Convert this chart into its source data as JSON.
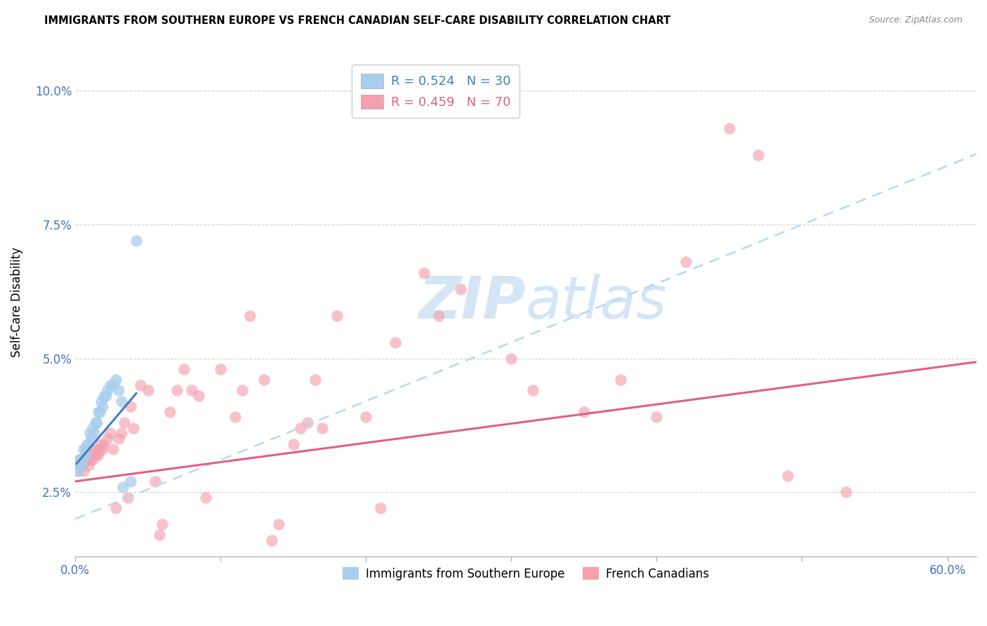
{
  "title": "IMMIGRANTS FROM SOUTHERN EUROPE VS FRENCH CANADIAN SELF-CARE DISABILITY CORRELATION CHART",
  "source": "Source: ZipAtlas.com",
  "ylabel": "Self-Care Disability",
  "xlim": [
    0.0,
    0.62
  ],
  "ylim": [
    0.013,
    0.108
  ],
  "yticks": [
    0.025,
    0.05,
    0.075,
    0.1
  ],
  "ytick_labels": [
    "2.5%",
    "5.0%",
    "7.5%",
    "10.0%"
  ],
  "xticks": [
    0.0,
    0.1,
    0.2,
    0.3,
    0.4,
    0.5,
    0.6
  ],
  "xtick_labels": [
    "0.0%",
    "",
    "",
    "",
    "",
    "",
    "60.0%"
  ],
  "blue_R": "R = 0.524",
  "blue_N": "N = 30",
  "pink_R": "R = 0.459",
  "pink_N": "N = 70",
  "blue_label": "Immigrants from Southern Europe",
  "pink_label": "French Canadians",
  "blue_color": "#A8CEEE",
  "pink_color": "#F4A0B0",
  "blue_line_color": "#4080C0",
  "pink_line_color": "#E06080",
  "dashed_line_color": "#B8D8F0",
  "watermark_color": "#D0E4F4",
  "tick_label_color": "#4472C4",
  "blue_scatter": [
    [
      0.001,
      0.03
    ],
    [
      0.002,
      0.029
    ],
    [
      0.003,
      0.031
    ],
    [
      0.004,
      0.03
    ],
    [
      0.005,
      0.031
    ],
    [
      0.006,
      0.033
    ],
    [
      0.007,
      0.032
    ],
    [
      0.008,
      0.034
    ],
    [
      0.009,
      0.034
    ],
    [
      0.01,
      0.036
    ],
    [
      0.011,
      0.035
    ],
    [
      0.012,
      0.037
    ],
    [
      0.013,
      0.036
    ],
    [
      0.014,
      0.038
    ],
    [
      0.015,
      0.038
    ],
    [
      0.016,
      0.04
    ],
    [
      0.017,
      0.04
    ],
    [
      0.018,
      0.042
    ],
    [
      0.019,
      0.041
    ],
    [
      0.02,
      0.043
    ],
    [
      0.021,
      0.043
    ],
    [
      0.022,
      0.044
    ],
    [
      0.024,
      0.045
    ],
    [
      0.026,
      0.045
    ],
    [
      0.028,
      0.046
    ],
    [
      0.03,
      0.044
    ],
    [
      0.032,
      0.042
    ],
    [
      0.033,
      0.026
    ],
    [
      0.038,
      0.027
    ],
    [
      0.042,
      0.072
    ]
  ],
  "pink_scatter": [
    [
      0.001,
      0.03
    ],
    [
      0.002,
      0.029
    ],
    [
      0.003,
      0.031
    ],
    [
      0.004,
      0.031
    ],
    [
      0.005,
      0.03
    ],
    [
      0.006,
      0.029
    ],
    [
      0.007,
      0.033
    ],
    [
      0.008,
      0.031
    ],
    [
      0.009,
      0.03
    ],
    [
      0.01,
      0.031
    ],
    [
      0.011,
      0.033
    ],
    [
      0.012,
      0.031
    ],
    [
      0.013,
      0.032
    ],
    [
      0.014,
      0.032
    ],
    [
      0.015,
      0.033
    ],
    [
      0.016,
      0.032
    ],
    [
      0.017,
      0.033
    ],
    [
      0.018,
      0.034
    ],
    [
      0.019,
      0.033
    ],
    [
      0.02,
      0.034
    ],
    [
      0.022,
      0.035
    ],
    [
      0.024,
      0.036
    ],
    [
      0.026,
      0.033
    ],
    [
      0.028,
      0.022
    ],
    [
      0.03,
      0.035
    ],
    [
      0.032,
      0.036
    ],
    [
      0.034,
      0.038
    ],
    [
      0.036,
      0.024
    ],
    [
      0.038,
      0.041
    ],
    [
      0.04,
      0.037
    ],
    [
      0.045,
      0.045
    ],
    [
      0.05,
      0.044
    ],
    [
      0.055,
      0.027
    ],
    [
      0.058,
      0.017
    ],
    [
      0.06,
      0.019
    ],
    [
      0.065,
      0.04
    ],
    [
      0.07,
      0.044
    ],
    [
      0.075,
      0.048
    ],
    [
      0.08,
      0.044
    ],
    [
      0.085,
      0.043
    ],
    [
      0.09,
      0.024
    ],
    [
      0.1,
      0.048
    ],
    [
      0.11,
      0.039
    ],
    [
      0.115,
      0.044
    ],
    [
      0.12,
      0.058
    ],
    [
      0.13,
      0.046
    ],
    [
      0.135,
      0.016
    ],
    [
      0.14,
      0.019
    ],
    [
      0.15,
      0.034
    ],
    [
      0.155,
      0.037
    ],
    [
      0.16,
      0.038
    ],
    [
      0.165,
      0.046
    ],
    [
      0.17,
      0.037
    ],
    [
      0.18,
      0.058
    ],
    [
      0.2,
      0.039
    ],
    [
      0.21,
      0.022
    ],
    [
      0.22,
      0.053
    ],
    [
      0.24,
      0.066
    ],
    [
      0.25,
      0.058
    ],
    [
      0.265,
      0.063
    ],
    [
      0.3,
      0.05
    ],
    [
      0.315,
      0.044
    ],
    [
      0.35,
      0.04
    ],
    [
      0.375,
      0.046
    ],
    [
      0.4,
      0.039
    ],
    [
      0.42,
      0.068
    ],
    [
      0.45,
      0.093
    ],
    [
      0.47,
      0.088
    ],
    [
      0.49,
      0.028
    ],
    [
      0.53,
      0.025
    ]
  ],
  "blue_line_x": [
    0.001,
    0.042
  ],
  "blue_line_slope": 0.32,
  "blue_line_intercept": 0.03,
  "pink_line_x0": 0.0,
  "pink_line_x1": 0.62,
  "pink_line_slope": 0.036,
  "pink_line_intercept": 0.027,
  "dash_line_x0": 0.0,
  "dash_line_x1": 0.62,
  "dash_line_slope": 0.11,
  "dash_line_intercept": 0.02
}
